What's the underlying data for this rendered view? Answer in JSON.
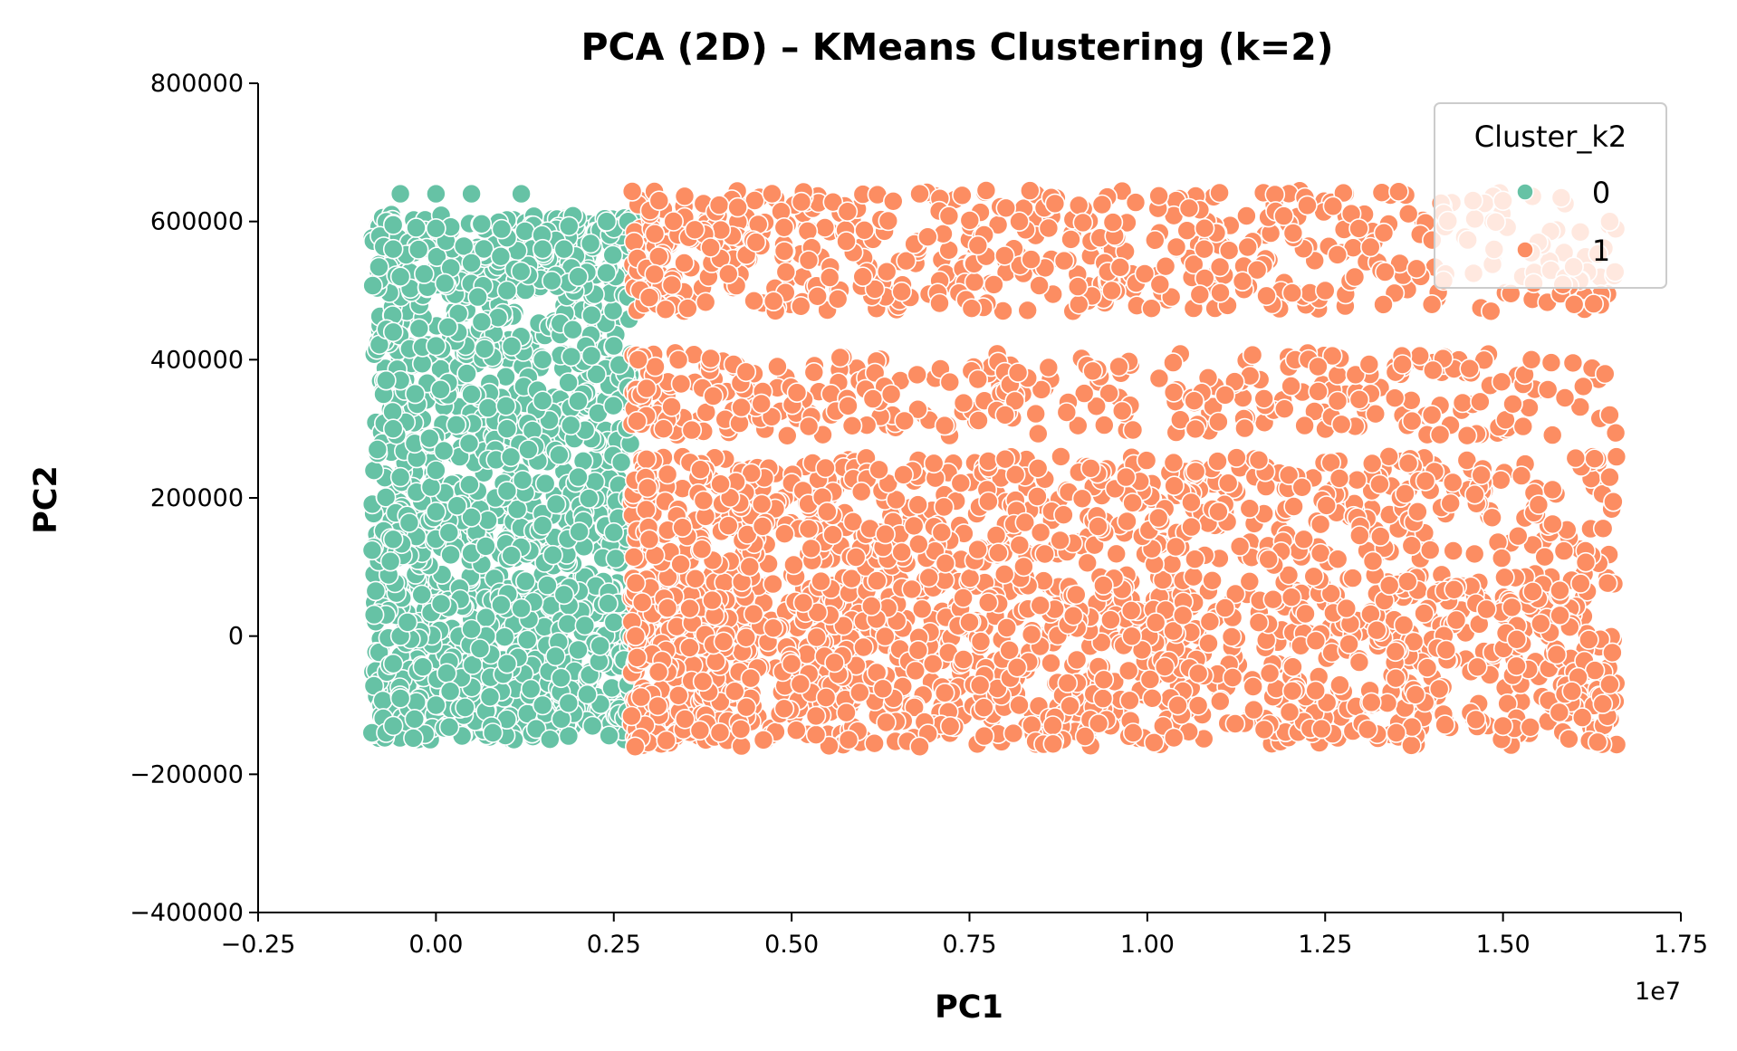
{
  "chart_data": {
    "type": "scatter",
    "title": "PCA (2D) – KMeans Clustering (k=2)",
    "xlabel": "PC1",
    "ylabel": "PC2",
    "x_offset_label": "1e7",
    "xlim": [
      -0.25,
      1.75
    ],
    "ylim": [
      -400000,
      800000
    ],
    "x_ticks": [
      -0.25,
      0.0,
      0.25,
      0.5,
      0.75,
      1.0,
      1.25,
      1.5,
      1.75
    ],
    "x_tick_labels": [
      "−0.25",
      "0.00",
      "0.25",
      "0.50",
      "0.75",
      "1.00",
      "1.25",
      "1.50",
      "1.75"
    ],
    "y_ticks": [
      -400000,
      -200000,
      0,
      200000,
      400000,
      600000,
      800000
    ],
    "y_tick_labels": [
      "−400000",
      "−200000",
      "0",
      "200000",
      "400000",
      "600000",
      "800000"
    ],
    "grid": false,
    "legend": {
      "title": "Cluster_k2",
      "placement": "top-right",
      "entries": [
        "0",
        "1"
      ]
    },
    "series": [
      {
        "name": "0",
        "color": "#66c2a5",
        "x_range": [
          -0.09,
          0.275
        ],
        "y_bands": [
          [
            -150000,
            90000
          ],
          [
            100000,
            240000
          ],
          [
            250000,
            480000
          ],
          [
            490000,
            610000
          ]
        ],
        "x": [
          -0.09,
          -0.07,
          -0.06,
          -0.06,
          -0.05,
          -0.05,
          -0.04,
          -0.03,
          -0.02,
          0.0,
          0.02,
          0.05,
          0.08,
          0.1,
          0.12,
          0.15,
          0.18,
          0.2,
          0.22,
          0.25,
          0.27,
          -0.06,
          -0.05,
          0.0,
          0.05,
          0.1,
          0.15,
          0.2,
          0.25,
          0.27,
          -0.06,
          -0.05,
          0.0,
          0.05,
          0.1,
          0.15,
          0.2,
          0.25,
          0.27,
          -0.07,
          -0.06,
          -0.05,
          0.0,
          0.05,
          0.1,
          0.15,
          0.2,
          0.25,
          0.27,
          -0.06,
          -0.05,
          0.0,
          0.05,
          0.12,
          0.18,
          0.24,
          -0.06,
          0.0,
          0.07,
          0.13
        ],
        "y": [
          -140000,
          -140000,
          -130000,
          -40000,
          -90000,
          0,
          20000,
          -120000,
          60000,
          -100000,
          -80000,
          10000,
          -140000,
          -40000,
          40000,
          -100000,
          60000,
          -20000,
          -130000,
          20000,
          -70000,
          140000,
          230000,
          180000,
          120000,
          210000,
          160000,
          230000,
          150000,
          200000,
          300000,
          370000,
          420000,
          350000,
          300000,
          400000,
          340000,
          420000,
          360000,
          370000,
          560000,
          520000,
          590000,
          540000,
          500000,
          560000,
          520000,
          590000,
          600000,
          595000,
          640000,
          640000,
          640000,
          640000,
          560000,
          600000,
          440000,
          240000,
          130000,
          270000
        ]
      },
      {
        "name": "1",
        "color": "#fc8d62",
        "x_range": [
          0.275,
          1.66
        ],
        "y_bands": [
          [
            -160000,
            90000
          ],
          [
            100000,
            260000
          ],
          [
            290000,
            410000
          ],
          [
            470000,
            645000
          ]
        ],
        "x": [
          0.28,
          0.35,
          0.42,
          0.5,
          0.58,
          0.62,
          0.68,
          0.75,
          0.82,
          0.9,
          0.98,
          1.05,
          1.12,
          1.2,
          1.28,
          1.35,
          1.42,
          1.5,
          1.58,
          1.65,
          0.3,
          0.4,
          0.55,
          0.7,
          0.85,
          0.97,
          1.1,
          1.22,
          1.38,
          1.55,
          1.65,
          0.32,
          0.48,
          0.64,
          0.8,
          0.96,
          1.1,
          1.24,
          1.4,
          1.54,
          1.65,
          0.3,
          0.45,
          0.6,
          0.68,
          0.82,
          0.95,
          1.08,
          1.25,
          1.4,
          1.5,
          1.6,
          1.65
        ],
        "y": [
          -160000,
          -120000,
          -80000,
          -40000,
          -150000,
          80000,
          -160000,
          20000,
          -100000,
          60000,
          -140000,
          30000,
          -60000,
          -110000,
          40000,
          -140000,
          -20000,
          -130000,
          30000,
          -70000,
          140000,
          220000,
          180000,
          250000,
          150000,
          230000,
          180000,
          140000,
          180000,
          190000,
          230000,
          300000,
          390000,
          350000,
          320000,
          390000,
          310000,
          390000,
          320000,
          400000,
          320000,
          490000,
          570000,
          520000,
          640000,
          600000,
          500000,
          560000,
          500000,
          480000,
          630000,
          480000,
          600000
        ]
      }
    ]
  }
}
